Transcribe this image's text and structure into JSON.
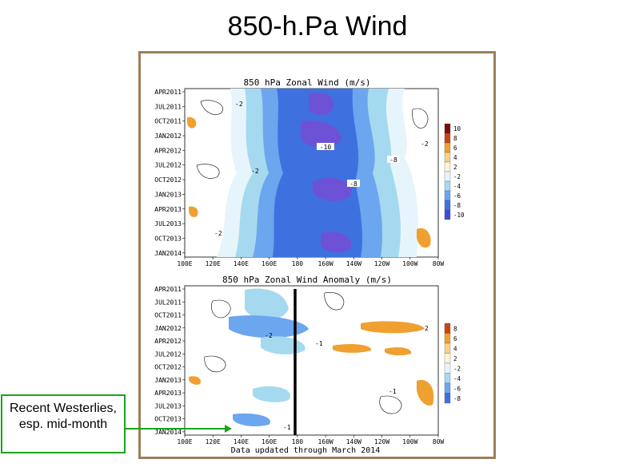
{
  "slide_title": "850-h.Pa Wind",
  "callout_text": "Recent Westerlies, esp. mid-month",
  "footer": "Data updated through March 2014",
  "chart_data": [
    {
      "type": "heatmap",
      "title": "850 hPa Zonal Wind (m/s)",
      "y_categories": [
        "APR2011",
        "JUL2011",
        "OCT2011",
        "JAN2012",
        "APR2012",
        "JUL2012",
        "OCT2012",
        "JAN2013",
        "APR2013",
        "JUL2013",
        "OCT2013",
        "JAN2014"
      ],
      "x_categories": [
        "100E",
        "120E",
        "140E",
        "160E",
        "180",
        "160W",
        "140W",
        "120W",
        "100W",
        "80W"
      ],
      "colorbar": [
        "10",
        "8",
        "6",
        "4",
        "2",
        "-2",
        "-4",
        "-6",
        "-8",
        "-10"
      ],
      "colors": [
        "#7a0d0d",
        "#c8460f",
        "#f0a030",
        "#f7d08a",
        "#fdf3d8",
        "#e6f5fb",
        "#a5d9f0",
        "#6ba6ee",
        "#3f70e0",
        "#3c4fd0"
      ],
      "contour_labels": [
        "-10",
        "-8",
        "-8",
        "-2",
        "-2",
        "-2",
        "-2"
      ]
    },
    {
      "type": "heatmap",
      "title": "850 hPa Zonal Wind Anomaly (m/s)",
      "y_categories": [
        "APR2011",
        "JUL2011",
        "OCT2011",
        "JAN2012",
        "APR2012",
        "JUL2012",
        "OCT2012",
        "JAN2013",
        "APR2013",
        "JUL2013",
        "OCT2013",
        "JAN2014"
      ],
      "x_categories": [
        "100E",
        "120E",
        "140E",
        "160E",
        "180",
        "160W",
        "140W",
        "120W",
        "100W",
        "80W"
      ],
      "colorbar": [
        "8",
        "6",
        "4",
        "2",
        "-2",
        "-4",
        "-6",
        "-8"
      ],
      "colors": [
        "#c8460f",
        "#f0a030",
        "#f7d08a",
        "#fdf3d8",
        "#e6f5fb",
        "#a5d9f0",
        "#6ba6ee",
        "#3f70e0"
      ],
      "contour_labels": [
        "2",
        "-2",
        "-1",
        "-1",
        "-1"
      ]
    }
  ]
}
